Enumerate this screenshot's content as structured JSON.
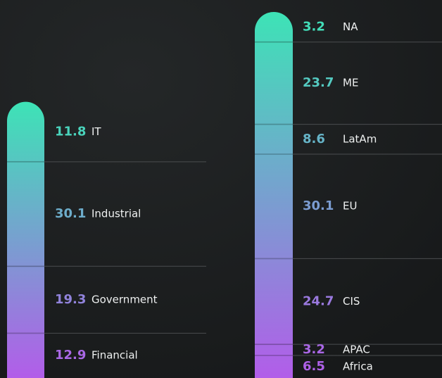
{
  "chart_data": [
    {
      "type": "stacked_bar",
      "categories": [
        "IT",
        "Industrial",
        "Government",
        "Financial"
      ],
      "values": [
        11.8,
        30.1,
        19.3,
        12.9
      ],
      "colors": [
        "#3de3b6",
        "#b25de9"
      ]
    },
    {
      "type": "stacked_bar",
      "categories": [
        "NA",
        "ME",
        "LatAm",
        "EU",
        "CIS",
        "APAC",
        "Africa"
      ],
      "values": [
        3.2,
        23.7,
        8.6,
        30.1,
        24.7,
        3.2,
        6.5
      ],
      "colors": [
        "#3de3b6",
        "#b25de9"
      ]
    }
  ]
}
